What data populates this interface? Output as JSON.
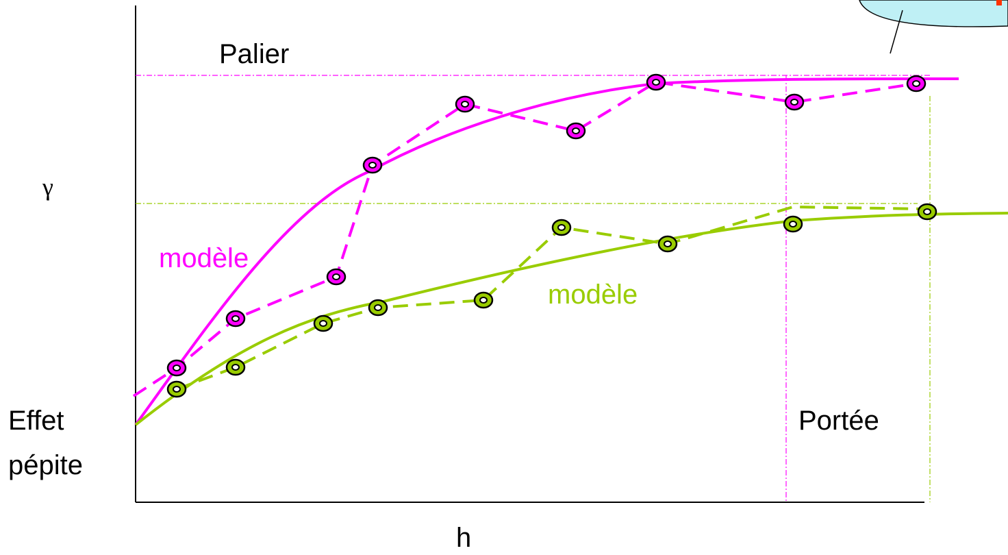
{
  "labels": {
    "sill": "Palier",
    "gamma": "γ",
    "model_magenta": "modèle",
    "model_green": "modèle",
    "nugget_line1": "Effet",
    "nugget_line2": "pépite",
    "range": "Portée",
    "h": "h"
  }
}
